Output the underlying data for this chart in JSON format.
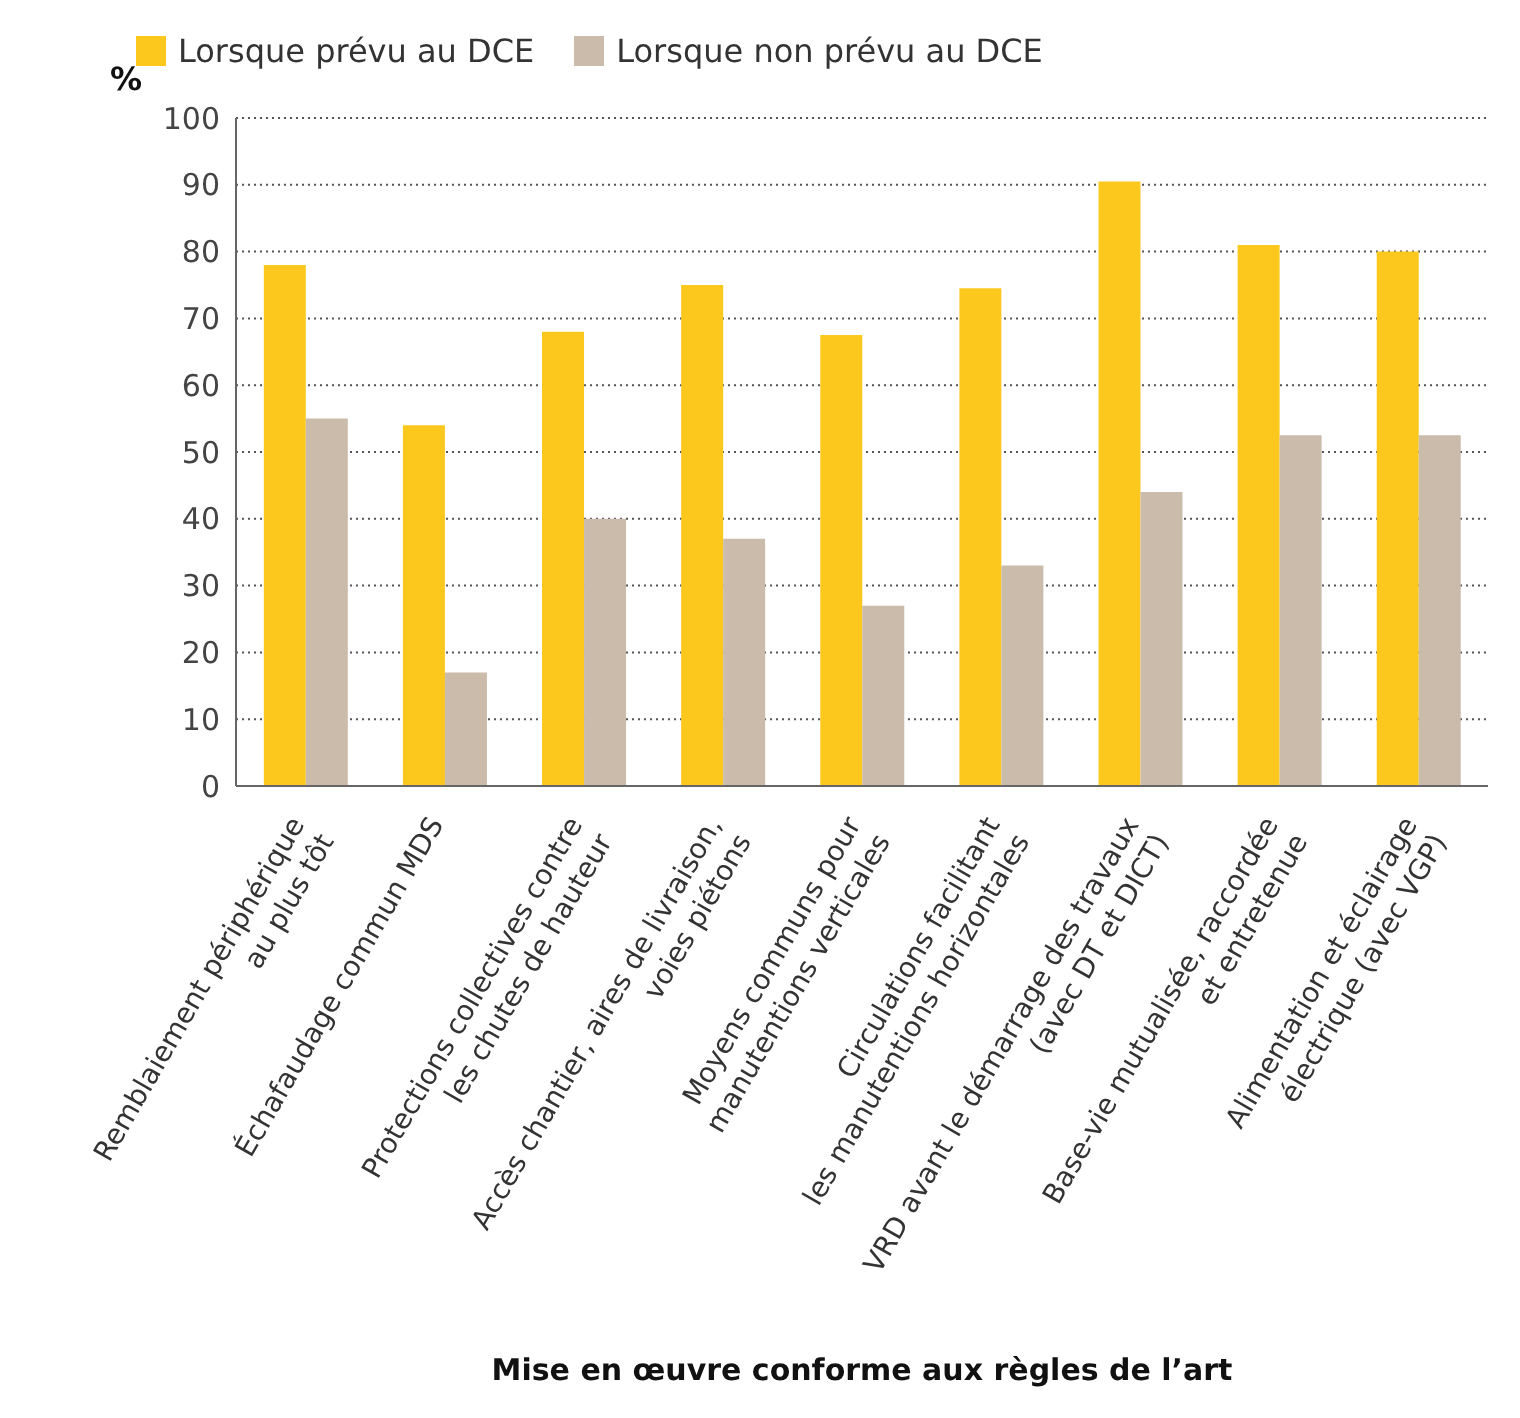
{
  "chart_data": {
    "type": "bar",
    "ylabel": "%",
    "xlabel": "Mise en œuvre conforme aux règles de l’art",
    "categories": [
      "Remblaiement périphérique\nau plus tôt",
      "Échafaudage commun MDS",
      "Protections collectives contre\nles chutes de hauteur",
      "Accès chantier, aires de livraison,\nvoies piétons",
      "Moyens communs pour\nmanutentions verticales",
      "Circulations facilitant\nles manutentions horizontales",
      "VRD avant le démarrage des travaux\n(avec DT et DICT)",
      "Base-vie mutualisée, raccordée\net entretenue",
      "Alimentation et éclairage\nélectrique (avec VGP)"
    ],
    "series": [
      {
        "name": "Lorsque prévu au DCE",
        "color": "#fcc81e",
        "values": [
          78,
          54,
          68,
          75,
          67.5,
          74.5,
          90.5,
          81,
          80
        ]
      },
      {
        "name": "Lorsque non prévu au DCE",
        "color": "#cbbbab",
        "values": [
          55,
          17,
          40,
          37,
          27,
          33,
          44,
          52.5,
          52.5
        ]
      }
    ],
    "ylim": [
      0,
      100
    ],
    "yticks": [
      0,
      10,
      20,
      30,
      40,
      50,
      60,
      70,
      80,
      90,
      100
    ],
    "grid": "y",
    "legend": "top left"
  }
}
